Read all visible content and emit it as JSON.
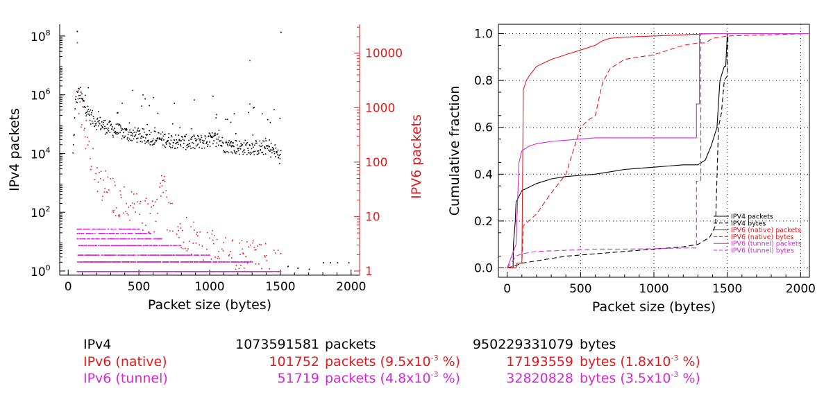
{
  "colors": {
    "ipv4": "#000000",
    "ipv6_native": "#e8191c",
    "ipv6_tunnel": "#d926d9",
    "grid": "#000000"
  },
  "chart_data": [
    {
      "type": "scatter",
      "xlabel": "Packet size (bytes)",
      "ylabel": "IPv4 packets",
      "ylabel_right": "IPV6 packets",
      "xlim": [
        -60,
        2060
      ],
      "xticks": [
        "0",
        "500",
        "1000",
        "1500",
        "2000"
      ],
      "ylim_left_log": [
        1,
        100000000
      ],
      "yticks_left": [
        "10",
        "10",
        "10",
        "10",
        "10"
      ],
      "yticks_left_exp": [
        "0",
        "2",
        "4",
        "6",
        "8"
      ],
      "ylim_right_log": [
        1,
        32000
      ],
      "yticks_right": [
        "1",
        "10",
        "100",
        "1000",
        "10000"
      ],
      "series": [
        {
          "color_key": "ipv4",
          "axis": "left",
          "pattern": "dense",
          "anchors": [
            [
              30,
              9000
            ],
            [
              50,
              800000
            ],
            [
              80,
              1200000
            ],
            [
              100,
              600000
            ],
            [
              150,
              200000
            ],
            [
              200,
              120000
            ],
            [
              300,
              70000
            ],
            [
              400,
              50000
            ],
            [
              500,
              42000
            ],
            [
              600,
              36000
            ],
            [
              700,
              30000
            ],
            [
              800,
              26000
            ],
            [
              900,
              24000
            ],
            [
              1000,
              30000
            ],
            [
              1050,
              33000
            ],
            [
              1100,
              20000
            ],
            [
              1200,
              17000
            ],
            [
              1300,
              17000
            ],
            [
              1400,
              16000
            ],
            [
              1450,
              13000
            ],
            [
              1500,
              8000
            ]
          ]
        },
        {
          "color_key": "ipv6_native",
          "axis": "right",
          "pattern": "sparse",
          "anchors": [
            [
              60,
              2200
            ],
            [
              100,
              700
            ],
            [
              150,
              150
            ],
            [
              200,
              60
            ],
            [
              300,
              30
            ],
            [
              400,
              20
            ],
            [
              500,
              15
            ],
            [
              600,
              12
            ],
            [
              660,
              80
            ],
            [
              700,
              12
            ],
            [
              800,
              6
            ],
            [
              900,
              4
            ],
            [
              1000,
              3
            ],
            [
              1100,
              3
            ],
            [
              1200,
              2
            ],
            [
              1300,
              2
            ],
            [
              1400,
              2
            ],
            [
              1500,
              1.5
            ]
          ]
        },
        {
          "color_key": "ipv6_tunnel",
          "axis": "right",
          "pattern": "bands",
          "anchors": [
            [
              60,
              20
            ],
            [
              150,
              24
            ],
            [
              300,
              10
            ],
            [
              500,
              6
            ],
            [
              800,
              3
            ],
            [
              1000,
              2
            ],
            [
              1300,
              1.5
            ]
          ]
        }
      ]
    },
    {
      "type": "line",
      "xlabel": "Packet size (bytes)",
      "ylabel": "Cumulative fraction",
      "xlim": [
        -60,
        2060
      ],
      "ylim": [
        -0.04,
        1.04
      ],
      "xticks": [
        "0",
        "500",
        "1000",
        "1500",
        "2000"
      ],
      "yticks": [
        "0.0",
        "0.2",
        "0.4",
        "0.6",
        "0.8",
        "1.0"
      ],
      "grid": true,
      "legend_placement": "bottom-right",
      "series": [
        {
          "name": "IPV4 packets",
          "color_key": "ipv4",
          "dash": false,
          "x": [
            0,
            40,
            42,
            55,
            60,
            100,
            200,
            300,
            400,
            500,
            600,
            700,
            800,
            900,
            1000,
            1100,
            1200,
            1300,
            1350,
            1390,
            1420,
            1430,
            1450,
            1470,
            1480,
            1490,
            1500,
            2060
          ],
          "y": [
            0,
            0,
            0.1,
            0.2,
            0.28,
            0.33,
            0.36,
            0.38,
            0.39,
            0.395,
            0.4,
            0.41,
            0.42,
            0.425,
            0.43,
            0.435,
            0.44,
            0.44,
            0.46,
            0.52,
            0.58,
            0.6,
            0.8,
            0.84,
            0.86,
            0.86,
            1.0,
            1.0
          ]
        },
        {
          "name": "IPV4 bytes",
          "color_key": "ipv4",
          "dash": true,
          "x": [
            0,
            60,
            100,
            200,
            300,
            400,
            500,
            600,
            700,
            800,
            900,
            1000,
            1100,
            1200,
            1300,
            1380,
            1420,
            1440,
            1460,
            1480,
            1500,
            1505,
            2060
          ],
          "y": [
            0,
            0.01,
            0.02,
            0.03,
            0.04,
            0.05,
            0.055,
            0.06,
            0.065,
            0.07,
            0.075,
            0.08,
            0.085,
            0.09,
            0.1,
            0.13,
            0.18,
            0.6,
            0.66,
            0.8,
            0.82,
            1.0,
            1.0
          ]
        },
        {
          "name": "IPV6 (native) packets",
          "color_key": "ipv6_native",
          "dash": false,
          "x": [
            0,
            60,
            65,
            100,
            110,
            130,
            150,
            200,
            300,
            400,
            500,
            550,
            600,
            650,
            700,
            800,
            1000,
            1200,
            1400,
            1500,
            2060
          ],
          "y": [
            0,
            0,
            0.02,
            0.02,
            0.76,
            0.8,
            0.82,
            0.86,
            0.89,
            0.91,
            0.93,
            0.94,
            0.95,
            0.97,
            0.98,
            0.985,
            0.99,
            0.995,
            1.0,
            1.0,
            1.0
          ]
        },
        {
          "name": "IPV6 (native) bytes",
          "color_key": "ipv6_native",
          "dash": true,
          "x": [
            0,
            60,
            65,
            100,
            110,
            200,
            300,
            400,
            500,
            550,
            600,
            650,
            700,
            800,
            1000,
            1100,
            1200,
            1300,
            1350,
            1400,
            1500,
            2060
          ],
          "y": [
            0,
            0,
            0.02,
            0.02,
            0.18,
            0.23,
            0.32,
            0.4,
            0.6,
            0.63,
            0.65,
            0.79,
            0.85,
            0.89,
            0.91,
            0.93,
            0.95,
            0.96,
            0.96,
            0.98,
            0.99,
            1.0
          ]
        },
        {
          "name": "IPV6 (tunnel) packets",
          "color_key": "ipv6_tunnel",
          "dash": false,
          "x": [
            0,
            60,
            80,
            100,
            150,
            200,
            300,
            400,
            500,
            600,
            1000,
            1260,
            1290,
            1290,
            1310,
            1310,
            1500,
            2060
          ],
          "y": [
            0,
            0.1,
            0.45,
            0.5,
            0.52,
            0.53,
            0.54,
            0.545,
            0.55,
            0.555,
            0.555,
            0.555,
            0.555,
            0.7,
            0.7,
            1.0,
            1.0,
            1.0
          ]
        },
        {
          "name": "IPV6 (tunnel) bytes",
          "color_key": "ipv6_tunnel",
          "dash": true,
          "x": [
            0,
            60,
            100,
            200,
            400,
            600,
            800,
            1000,
            1200,
            1280,
            1290,
            1290,
            1320,
            1320,
            1500,
            2060
          ],
          "y": [
            0,
            0.05,
            0.06,
            0.07,
            0.075,
            0.08,
            0.08,
            0.082,
            0.085,
            0.085,
            0.085,
            0.37,
            0.37,
            1.0,
            1.0,
            1.0
          ]
        }
      ]
    }
  ],
  "stats": {
    "rows": [
      {
        "name": "IPv4",
        "color_key": "ipv4",
        "packets": "1073591581",
        "packets_label": "packets",
        "packets_pct": "",
        "packets_pct_end": "",
        "bytes": "950229331079",
        "bytes_label": "bytes",
        "bytes_pct": "",
        "bytes_pct_end": ""
      },
      {
        "name": "IPv6 (native)",
        "color_key": "ipv6_native",
        "packets": "101752",
        "packets_label": "packets (9.5x10",
        "packets_pct": "-3",
        "packets_pct_end": " %)",
        "bytes": "17193559",
        "bytes_label": "bytes (1.8x10",
        "bytes_pct": "-3",
        "bytes_pct_end": " %)"
      },
      {
        "name": "IPv6 (tunnel)",
        "color_key": "ipv6_tunnel",
        "packets": "51719",
        "packets_label": "packets (4.8x10",
        "packets_pct": "-3",
        "packets_pct_end": " %)",
        "bytes": "32820828",
        "bytes_label": "bytes (3.5x10",
        "bytes_pct": "-3",
        "bytes_pct_end": " %)"
      }
    ]
  }
}
